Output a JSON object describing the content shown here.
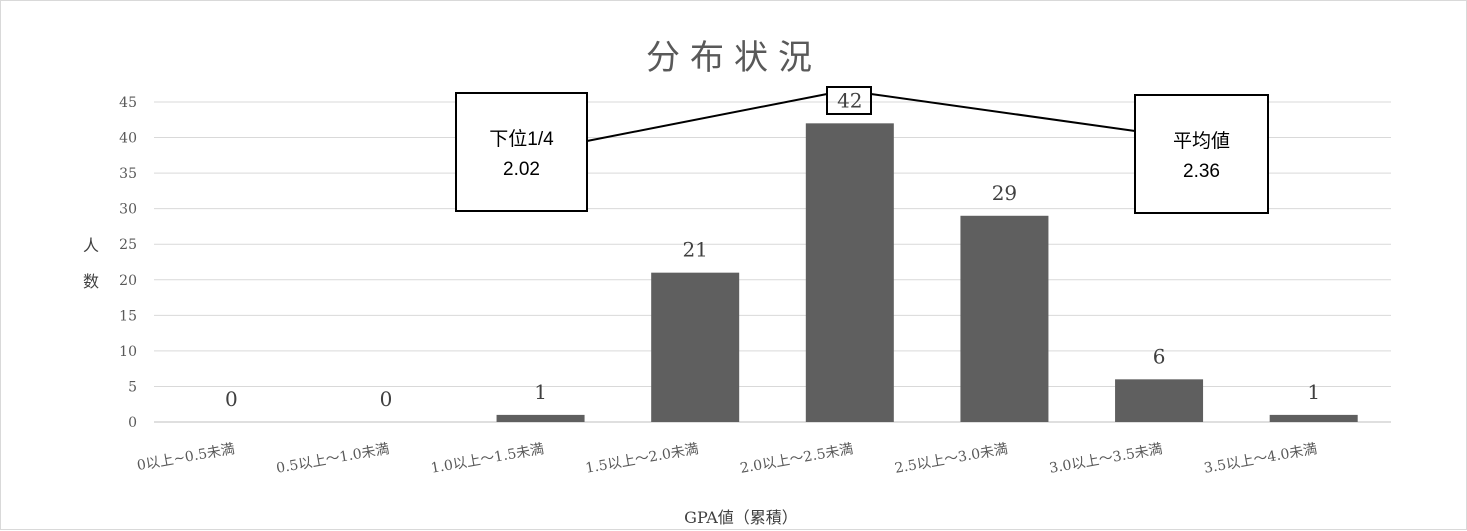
{
  "chart_data": {
    "type": "bar",
    "title": "分布状況",
    "xlabel": "GPA値（累積）",
    "ylabel": "人数",
    "ylim": [
      0,
      45
    ],
    "yticks": [
      0,
      5,
      10,
      15,
      20,
      25,
      30,
      35,
      40,
      45
    ],
    "grid": true,
    "categories": [
      "0以上~0.5未満",
      "0.5以上～1.0未満",
      "1.0以上～1.5未満",
      "1.5以上～2.0未満",
      "2.0以上～2.5未満",
      "2.5以上～3.0未満",
      "3.0以上～3.5未満",
      "3.5以上～4.0未満"
    ],
    "values": [
      0,
      0,
      1,
      21,
      42,
      29,
      6,
      1
    ],
    "bar_color": "#5f5f5f",
    "annotations": [
      {
        "line1": "下位1/4",
        "line2": "2.02",
        "points_to_category": 4
      },
      {
        "line1": "平均値",
        "line2": "2.36",
        "points_to_category": 4
      }
    ]
  }
}
